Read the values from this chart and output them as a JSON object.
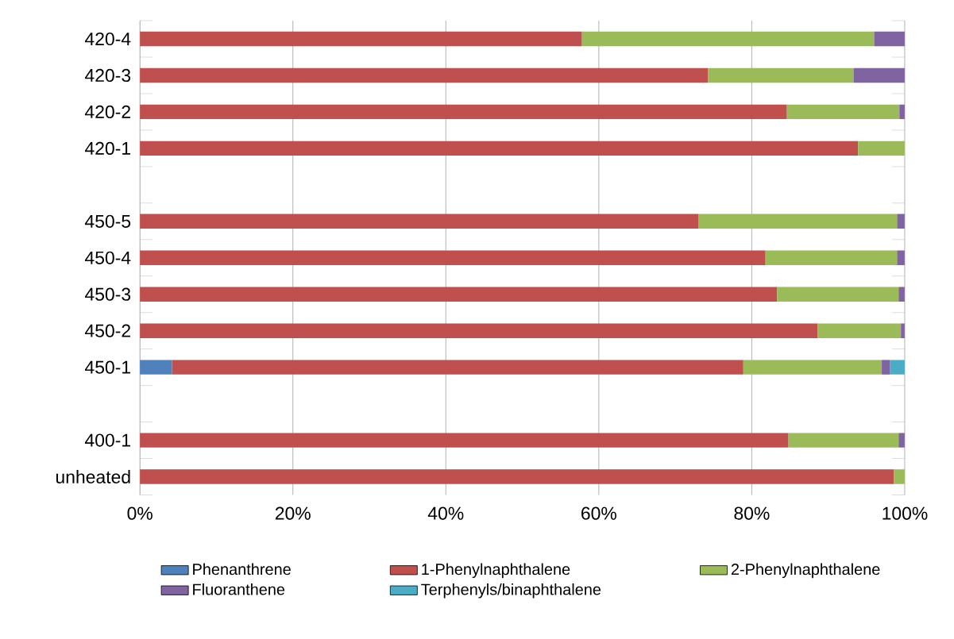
{
  "chart_data": {
    "type": "bar",
    "orientation": "horizontal",
    "stacked": true,
    "categories": [
      "420-4",
      "420-3",
      "420-2",
      "420-1",
      null,
      "450-5",
      "450-4",
      "450-3",
      "450-2",
      "450-1",
      null,
      "400-1",
      "unheated"
    ],
    "series": [
      {
        "name": "Phenanthrene",
        "color": "#4f81bd",
        "values": [
          null,
          null,
          null,
          null,
          null,
          null,
          null,
          null,
          null,
          4.2,
          null,
          null,
          null
        ]
      },
      {
        "name": "1-Phenylnaphthalene",
        "color": "#c0504d",
        "values": [
          57.8,
          74.3,
          84.6,
          93.9,
          null,
          73.0,
          81.8,
          83.3,
          88.6,
          74.7,
          null,
          84.8,
          98.6
        ]
      },
      {
        "name": "2-Phenylnaphthalene",
        "color": "#9bbb59",
        "values": [
          38.2,
          19.0,
          14.7,
          6.1,
          null,
          26.0,
          17.2,
          15.9,
          10.9,
          18.1,
          null,
          14.4,
          1.4
        ]
      },
      {
        "name": "Fluoranthene",
        "color": "#8064a2",
        "values": [
          4.0,
          6.7,
          0.7,
          null,
          null,
          1.0,
          1.0,
          0.8,
          0.5,
          1.1,
          null,
          0.8,
          null
        ]
      },
      {
        "name": "Terphenyls/binaphthalene",
        "color": "#4bacc6",
        "values": [
          null,
          null,
          null,
          null,
          null,
          null,
          null,
          null,
          null,
          1.9,
          null,
          null,
          null
        ]
      }
    ],
    "xlim": [
      0,
      100
    ],
    "xticks": [
      {
        "value": 0,
        "label": "0%"
      },
      {
        "value": 20,
        "label": "20%"
      },
      {
        "value": 40,
        "label": "40%"
      },
      {
        "value": 60,
        "label": "60%"
      },
      {
        "value": 80,
        "label": "80%"
      },
      {
        "value": 100,
        "label": "100%"
      }
    ],
    "grid": "x",
    "legend": "bottom"
  }
}
